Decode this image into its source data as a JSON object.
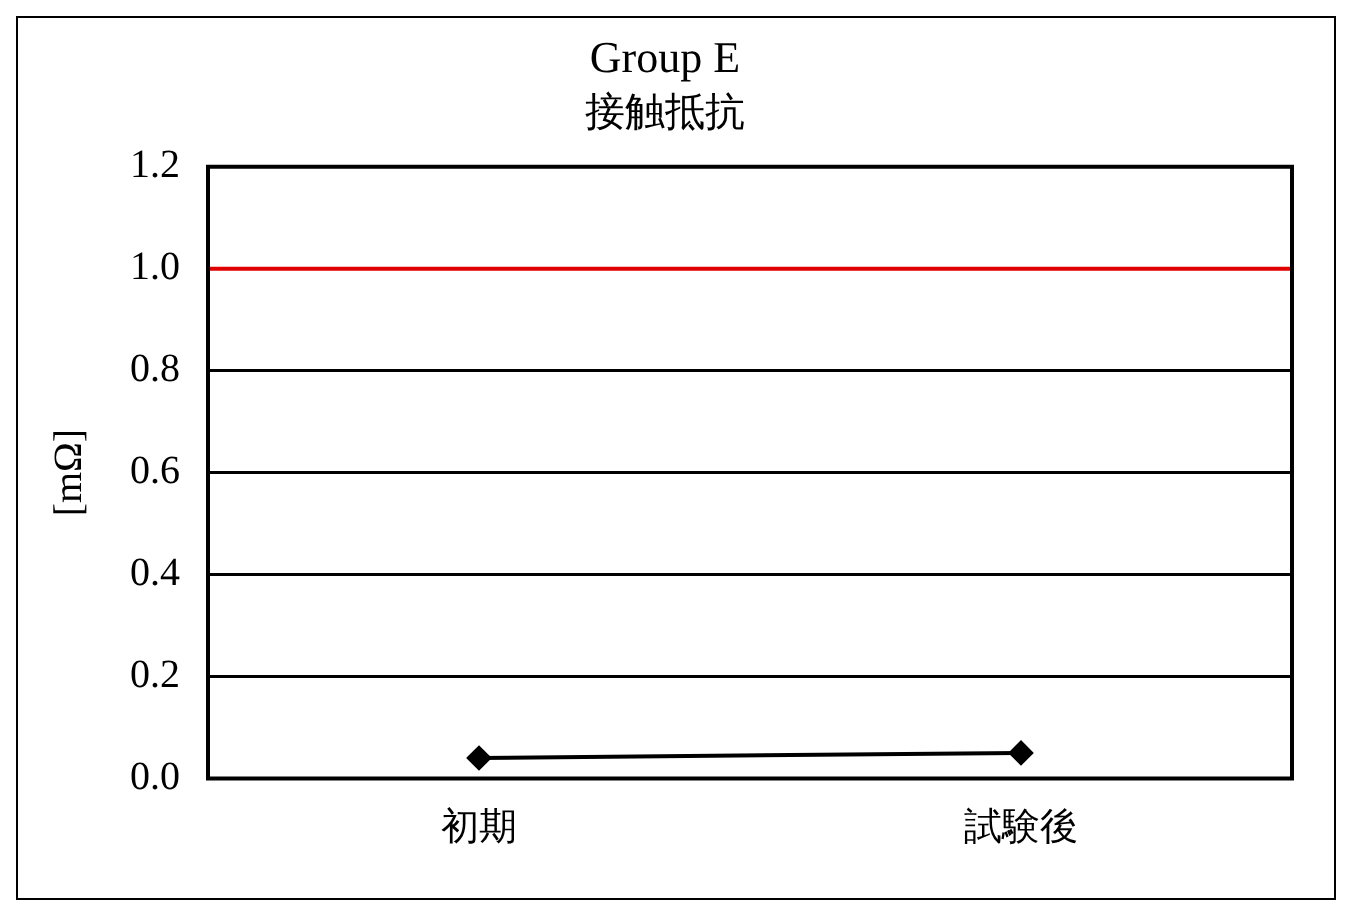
{
  "chart_data": {
    "type": "line",
    "title": "Group E",
    "subtitle": "接触抵抗",
    "ylabel": "[mΩ]",
    "categories": [
      "初期",
      "試験後"
    ],
    "series": [
      {
        "color": "#000000",
        "values": [
          0.04,
          0.05
        ]
      }
    ],
    "ylim": [
      0,
      1.2
    ],
    "yticks": [
      {
        "value": 0,
        "label": "0.0"
      },
      {
        "value": 0.2,
        "label": "0.2"
      },
      {
        "value": 0.4,
        "label": "0.4"
      },
      {
        "value": 0.6,
        "label": "0.6"
      },
      {
        "value": 0.8,
        "label": "0.8"
      },
      {
        "value": 1,
        "label": "1.0"
      },
      {
        "value": 1.2,
        "label": "1.2"
      }
    ],
    "ref_lines": [
      {
        "axis": "y",
        "value": 1,
        "color": "#e00000"
      }
    ],
    "grid": "y",
    "legend": false,
    "marker": "diamond",
    "line_style": "solid"
  }
}
